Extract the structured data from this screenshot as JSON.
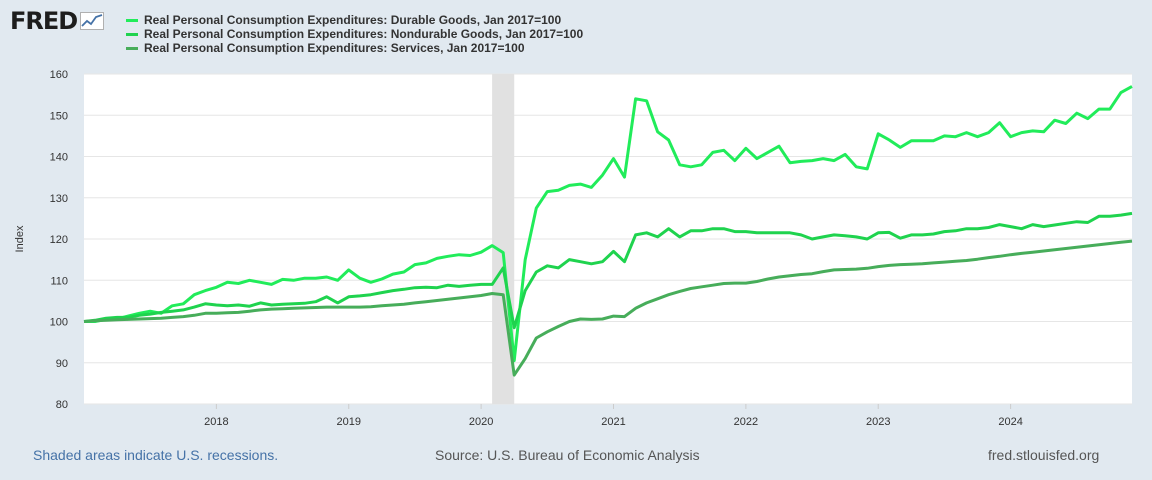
{
  "header": {
    "logo_text": "FRED",
    "logo_icon": "trend-line-icon"
  },
  "colors": {
    "durable": "#21ec5a",
    "nondurable": "#1fd34e",
    "services": "#47ad5a",
    "recession_band": "#e1e1e1",
    "background": "#e1e9f0",
    "plot_background": "#ffffff",
    "grid": "#e6e6e6"
  },
  "footer": {
    "recessions_note": "Shaded areas indicate U.S. recessions.",
    "source": "Source: U.S. Bureau of Economic Analysis",
    "site": "fred.stlouisfed.org"
  },
  "chart_data": {
    "type": "line",
    "title": "",
    "xlabel": "",
    "ylabel": "Index",
    "x_start": "2017-01",
    "x_range": [
      2017.0,
      2024.917
    ],
    "ylim": [
      80,
      160
    ],
    "yticks": [
      80,
      90,
      100,
      110,
      120,
      130,
      140,
      150,
      160
    ],
    "xticks": [
      2018,
      2019,
      2020,
      2021,
      2022,
      2023,
      2024
    ],
    "grid": true,
    "recession": {
      "start": 2020.083,
      "end": 2020.25
    },
    "series": [
      {
        "name": "Real Personal Consumption Expenditures: Durable Goods, Jan 2017=100",
        "color_key": "durable",
        "values": [
          100,
          100,
          100.5,
          100.6,
          101.3,
          102,
          102.5,
          102,
          103.8,
          104.3,
          106.5,
          107.5,
          108.3,
          109.5,
          109.2,
          110,
          109.5,
          109,
          110.2,
          110,
          110.5,
          110.5,
          110.8,
          110,
          112.5,
          110.5,
          109.5,
          110.3,
          111.5,
          112,
          113.8,
          114.2,
          115.3,
          115.8,
          116.2,
          116,
          116.8,
          118.4,
          116.7,
          90.5,
          115,
          127.5,
          131.5,
          131.8,
          133,
          133.3,
          132.5,
          135.5,
          139.5,
          135,
          154,
          153.5,
          146,
          144,
          138,
          137.5,
          138,
          141,
          141.5,
          139,
          142,
          139.5,
          141,
          142.5,
          138.5,
          138.8,
          139,
          139.5,
          139,
          140.5,
          137.5,
          137,
          145.5,
          144,
          142.2,
          143.8,
          143.8,
          143.8,
          145,
          144.8,
          145.8,
          144.8,
          145.8,
          148.2,
          144.8,
          145.8,
          146.2,
          146,
          148.8,
          148,
          150.5,
          149.2,
          151.5,
          151.5,
          155.5,
          157
        ]
      },
      {
        "name": "Real Personal Consumption Expenditures: Nondurable Goods, Jan 2017=100",
        "color_key": "nondurable",
        "values": [
          100,
          100.3,
          100.8,
          101,
          101,
          101.5,
          101.8,
          102.2,
          102.5,
          102.8,
          103.5,
          104.3,
          104,
          103.8,
          104,
          103.7,
          104.5,
          104,
          104.2,
          104.3,
          104.4,
          104.8,
          106,
          104.5,
          106,
          106.2,
          106.5,
          107,
          107.5,
          107.8,
          108.2,
          108.3,
          108.2,
          108.8,
          108.5,
          108.8,
          109,
          109,
          113,
          98.5,
          107.5,
          112,
          113.5,
          113,
          115,
          114.5,
          114,
          114.5,
          117,
          114.5,
          121,
          121.5,
          120.5,
          122.5,
          120.5,
          122,
          122,
          122.5,
          122.5,
          121.8,
          121.8,
          121.5,
          121.5,
          121.5,
          121.5,
          121,
          120,
          120.5,
          121,
          120.8,
          120.5,
          120,
          121.5,
          121.6,
          120.2,
          121,
          121,
          121.2,
          121.8,
          122,
          122.5,
          122.5,
          122.8,
          123.5,
          123,
          122.5,
          123.5,
          123,
          123.4,
          123.8,
          124.2,
          124,
          125.5,
          125.5,
          125.8,
          126.2
        ]
      },
      {
        "name": "Real Personal Consumption Expenditures: Services, Jan 2017=100",
        "color_key": "services",
        "values": [
          100,
          100.2,
          100.3,
          100.4,
          100.5,
          100.6,
          100.7,
          100.8,
          101,
          101.2,
          101.5,
          102,
          102,
          102.1,
          102.2,
          102.5,
          102.8,
          103,
          103.1,
          103.2,
          103.3,
          103.4,
          103.5,
          103.5,
          103.5,
          103.5,
          103.6,
          103.8,
          104,
          104.2,
          104.5,
          104.8,
          105.1,
          105.4,
          105.7,
          106,
          106.3,
          106.8,
          106.5,
          87,
          91,
          96,
          97.5,
          98.8,
          100,
          100.6,
          100.5,
          100.6,
          101.3,
          101.2,
          103.2,
          104.5,
          105.5,
          106.5,
          107.3,
          108,
          108.4,
          108.8,
          109.2,
          109.3,
          109.3,
          109.7,
          110.3,
          110.8,
          111.1,
          111.4,
          111.6,
          112.1,
          112.5,
          112.6,
          112.7,
          112.9,
          113.3,
          113.6,
          113.8,
          113.9,
          114,
          114.2,
          114.4,
          114.6,
          114.8,
          115.1,
          115.5,
          115.8,
          116.2,
          116.5,
          116.8,
          117.1,
          117.4,
          117.7,
          118,
          118.3,
          118.6,
          118.9,
          119.2,
          119.5
        ]
      }
    ]
  }
}
